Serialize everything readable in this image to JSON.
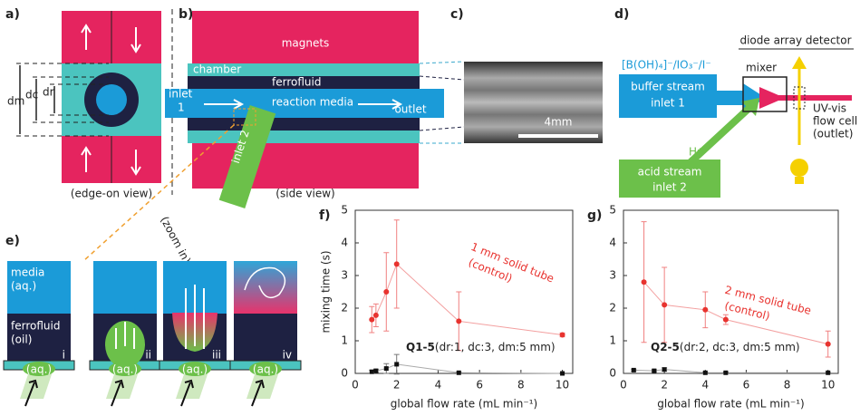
{
  "diagram": {
    "a": {
      "letter": "a)",
      "dm": "dm",
      "dc": "dc",
      "dr": "dr",
      "view": "(edge-on view)"
    },
    "b": {
      "letter": "b)",
      "magnets": "magnets",
      "chamber": "chamber",
      "ferrofluid": "ferrofluid",
      "inlet1": [
        "inlet",
        "1"
      ],
      "media": "reaction media",
      "outlet": "outlet",
      "inlet2": "inlet 2",
      "view": "(side view)",
      "zoom": "(zoom in)"
    },
    "c": {
      "letter": "c)",
      "scale": "4mm"
    },
    "d": {
      "letter": "d)",
      "detector": "diode array detector",
      "mixer": "mixer",
      "buffer_species": "[B(OH)₄]⁻/IO₃⁻/I⁻",
      "buffer": [
        "buffer stream",
        "inlet 1"
      ],
      "acid_species": "H⁺",
      "acid": [
        "acid stream",
        "inlet 2"
      ],
      "cell": [
        "UV-vis",
        "flow cell",
        "(outlet)"
      ]
    },
    "e": {
      "letter": "e)",
      "media": [
        "media",
        "(aq.)"
      ],
      "ferrofluid": [
        "ferrofluid",
        "(oil)"
      ],
      "steps": [
        "i",
        "ii",
        "iii",
        "iv"
      ],
      "aq": "(aq.)"
    }
  },
  "chart_data": [
    {
      "type": "scatter",
      "panel": "f)",
      "xlabel": "global flow rate (mL min⁻¹)",
      "ylabel": "mixing time (s)",
      "xlim": [
        0,
        10.5
      ],
      "ylim": [
        0,
        5
      ],
      "xticks": [
        0,
        2,
        4,
        6,
        8,
        10
      ],
      "yticks": [
        0,
        1,
        2,
        3,
        4,
        5
      ],
      "series": [
        {
          "color": "#e8332f",
          "label": [
            "1 mm solid tube",
            "(control)"
          ],
          "x": [
            0.8,
            1,
            1.5,
            2,
            5,
            10
          ],
          "values": [
            1.65,
            1.78,
            2.5,
            3.35,
            1.6,
            1.18
          ],
          "errors": [
            0.4,
            0.35,
            1.2,
            1.35,
            0.9,
            0.06
          ]
        },
        {
          "color": "#111111",
          "label": [
            "Q1-5",
            "(dr:1, dc:3, dm:5 mm)"
          ],
          "x": [
            0.8,
            1,
            1.5,
            2,
            5,
            10
          ],
          "values": [
            0.05,
            0.08,
            0.15,
            0.28,
            0.02,
            0.0
          ],
          "errors": [
            0.05,
            0.05,
            0.15,
            0.3,
            0.02,
            0.01
          ]
        }
      ]
    },
    {
      "type": "scatter",
      "panel": "g)",
      "xlabel": "global flow rate (mL min⁻¹)",
      "xlim": [
        0,
        10.5
      ],
      "ylim": [
        0,
        5
      ],
      "xticks": [
        0,
        2,
        4,
        6,
        8,
        10
      ],
      "yticks": [
        0,
        1,
        2,
        3,
        4,
        5
      ],
      "series": [
        {
          "color": "#e8332f",
          "label": [
            "2 mm solid tube",
            "(control)"
          ],
          "x": [
            1,
            2,
            4,
            5,
            10
          ],
          "values": [
            2.8,
            2.1,
            1.95,
            1.65,
            0.9
          ],
          "errors": [
            1.85,
            1.15,
            0.55,
            0.15,
            0.4
          ]
        },
        {
          "color": "#111111",
          "label": [
            "Q2-5",
            "(dr:2, dc:3, dm:5 mm)"
          ],
          "x": [
            0.5,
            1.5,
            2,
            4,
            5,
            10
          ],
          "values": [
            0.1,
            0.08,
            0.12,
            0.02,
            0.02,
            0.02
          ],
          "errors": [
            0.03,
            0.03,
            0.05,
            0.02,
            0.02,
            0.01
          ]
        }
      ]
    }
  ]
}
